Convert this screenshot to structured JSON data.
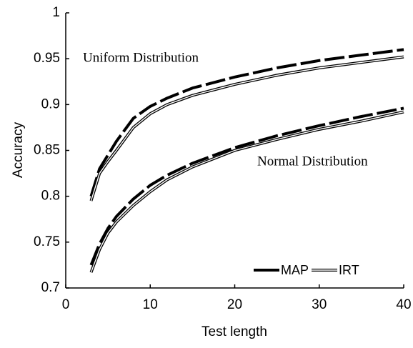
{
  "chart_data": {
    "type": "line",
    "xlabel": "Test length",
    "ylabel": "Accuracy",
    "xlim": [
      0,
      40
    ],
    "ylim": [
      0.7,
      1
    ],
    "xticks": [
      0,
      10,
      20,
      30,
      40
    ],
    "yticks": [
      0.7,
      0.75,
      0.8,
      0.85,
      0.9,
      0.95,
      1
    ],
    "legend": "lower right",
    "annotations": [
      "Uniform Distribution",
      "Normal Distribution"
    ],
    "x": [
      3,
      4,
      5,
      6,
      8,
      10,
      12,
      15,
      20,
      25,
      30,
      35,
      40
    ],
    "series": [
      {
        "name": "MAP",
        "color": "#000000",
        "line_style": "dashed",
        "values": [
          0.8,
          0.83,
          0.845,
          0.86,
          0.885,
          0.898,
          0.907,
          0.918,
          0.93,
          0.94,
          0.948,
          0.954,
          0.96
        ]
      },
      {
        "name": "IRT",
        "color": "#000000",
        "line_style": "double",
        "values": [
          0.795,
          0.825,
          0.838,
          0.85,
          0.875,
          0.89,
          0.9,
          0.91,
          0.922,
          0.932,
          0.94,
          0.946,
          0.952
        ]
      },
      {
        "name": "MAP",
        "color": "#000000",
        "line_style": "dashed",
        "values": [
          0.725,
          0.748,
          0.765,
          0.778,
          0.797,
          0.812,
          0.823,
          0.836,
          0.853,
          0.866,
          0.877,
          0.887,
          0.896
        ]
      },
      {
        "name": "IRT",
        "color": "#000000",
        "line_style": "double",
        "values": [
          0.717,
          0.742,
          0.76,
          0.772,
          0.79,
          0.805,
          0.818,
          0.832,
          0.85,
          0.862,
          0.873,
          0.882,
          0.892
        ]
      }
    ]
  }
}
